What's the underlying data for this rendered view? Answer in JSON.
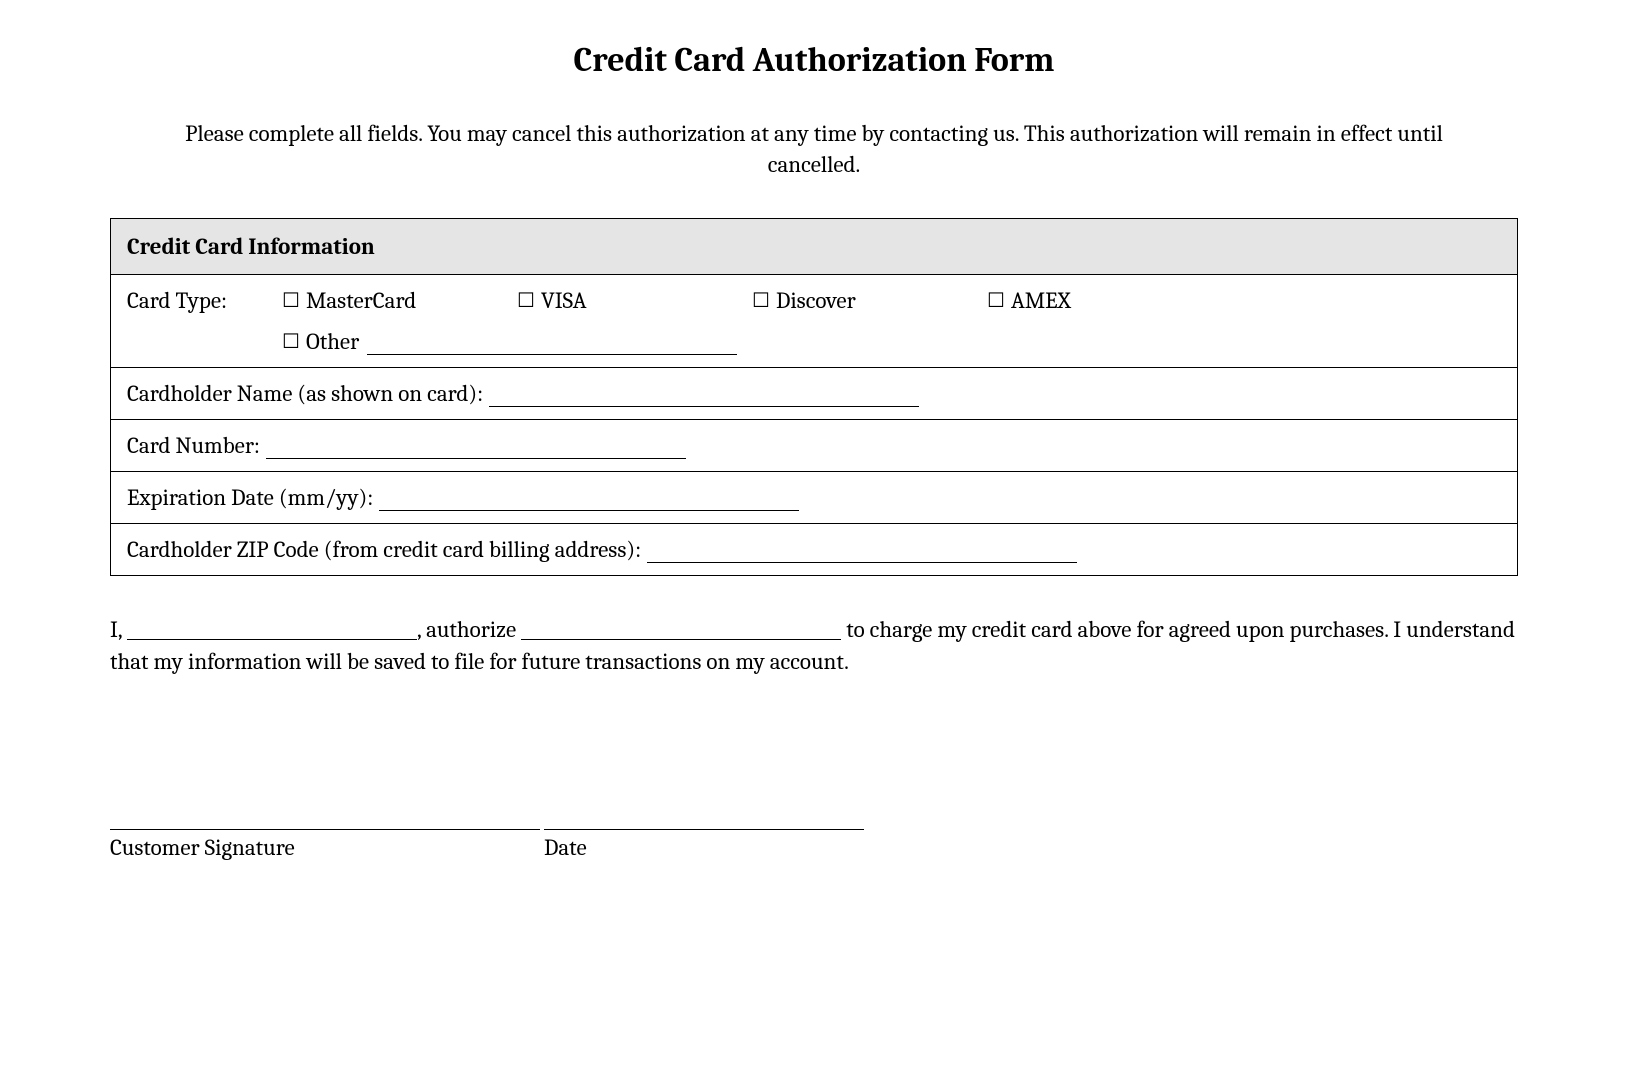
{
  "title": "Credit Card Authorization Form",
  "intro": "Please complete all fields. You may cancel this authorization at any time by contacting us. This authorization will remain in effect until cancelled.",
  "section_header": "Credit Card Information",
  "card_type_label": "Card Type:",
  "options": {
    "mastercard": "MasterCard",
    "visa": "VISA",
    "discover": "Discover",
    "amex": "AMEX",
    "other": "Other"
  },
  "fields": {
    "cardholder_name": "Cardholder Name (as shown on card):",
    "card_number": "Card Number:",
    "expiration": "Expiration Date (mm/yy):",
    "zip": "Cardholder ZIP Code (from credit card billing address):"
  },
  "auth": {
    "i": "I,",
    "authorize": ", authorize",
    "rest": "to charge my credit card above for agreed upon purchases. I understand that my information will be saved to file for future transactions on my account."
  },
  "signature_label": "Customer Signature",
  "date_label": "Date"
}
